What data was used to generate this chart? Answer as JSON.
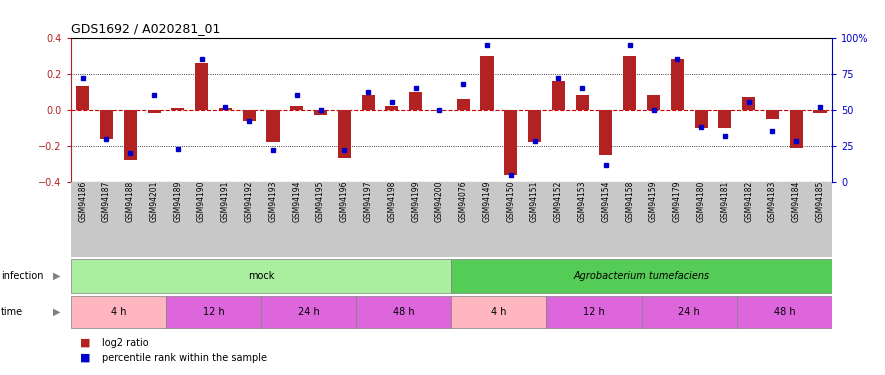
{
  "title": "GDS1692 / A020281_01",
  "samples": [
    "GSM94186",
    "GSM94187",
    "GSM94188",
    "GSM94201",
    "GSM94189",
    "GSM94190",
    "GSM94191",
    "GSM94192",
    "GSM94193",
    "GSM94194",
    "GSM94195",
    "GSM94196",
    "GSM94197",
    "GSM94198",
    "GSM94199",
    "GSM94200",
    "GSM94076",
    "GSM94149",
    "GSM94150",
    "GSM94151",
    "GSM94152",
    "GSM94153",
    "GSM94154",
    "GSM94158",
    "GSM94159",
    "GSM94179",
    "GSM94180",
    "GSM94181",
    "GSM94182",
    "GSM94183",
    "GSM94184",
    "GSM94185"
  ],
  "log2_ratio": [
    0.13,
    -0.16,
    -0.28,
    -0.02,
    0.01,
    0.26,
    0.01,
    -0.06,
    -0.18,
    0.02,
    -0.03,
    -0.27,
    0.08,
    0.02,
    0.1,
    -0.01,
    0.06,
    0.3,
    -0.36,
    -0.18,
    0.16,
    0.08,
    -0.25,
    0.3,
    0.08,
    0.28,
    -0.1,
    -0.1,
    0.07,
    -0.05,
    -0.21,
    -0.02
  ],
  "percentile_rank": [
    72,
    30,
    20,
    60,
    23,
    85,
    52,
    42,
    22,
    60,
    50,
    22,
    62,
    55,
    65,
    50,
    68,
    95,
    5,
    28,
    72,
    65,
    12,
    95,
    50,
    85,
    38,
    32,
    55,
    35,
    28,
    52
  ],
  "ylim_left": [
    -0.4,
    0.4
  ],
  "ylim_right": [
    0,
    100
  ],
  "yticks_left": [
    -0.4,
    -0.2,
    0.0,
    0.2,
    0.4
  ],
  "yticks_right": [
    0,
    25,
    50,
    75,
    100
  ],
  "bar_color": "#B22222",
  "dot_color": "#0000CD",
  "zero_line_color": "#CC0000",
  "grid_color": "#000000",
  "sample_band_color": "#C8C8C8",
  "infection_groups": [
    {
      "label": "mock",
      "start": 0,
      "end": 16,
      "color": "#AAEEA0"
    },
    {
      "label": "Agrobacterium tumefaciens",
      "start": 16,
      "end": 32,
      "color": "#55CC55"
    }
  ],
  "time_groups": [
    {
      "label": "4 h",
      "start": 0,
      "end": 4,
      "color": "#FFB6C1"
    },
    {
      "label": "12 h",
      "start": 4,
      "end": 8,
      "color": "#DD66DD"
    },
    {
      "label": "24 h",
      "start": 8,
      "end": 12,
      "color": "#DD66DD"
    },
    {
      "label": "48 h",
      "start": 12,
      "end": 16,
      "color": "#DD66DD"
    },
    {
      "label": "4 h",
      "start": 16,
      "end": 20,
      "color": "#FFB6C1"
    },
    {
      "label": "12 h",
      "start": 20,
      "end": 24,
      "color": "#DD66DD"
    },
    {
      "label": "24 h",
      "start": 24,
      "end": 28,
      "color": "#DD66DD"
    },
    {
      "label": "48 h",
      "start": 28,
      "end": 32,
      "color": "#DD66DD"
    }
  ],
  "infection_label": "infection",
  "time_label": "time",
  "legend_red": "log2 ratio",
  "legend_blue": "percentile rank within the sample",
  "bg_color": "#FFFFFF"
}
